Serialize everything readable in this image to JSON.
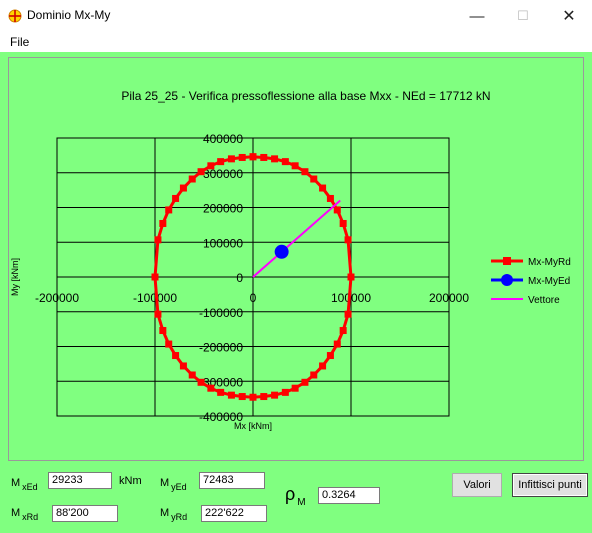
{
  "window": {
    "title": "Dominio Mx-My"
  },
  "menu": {
    "file": "File"
  },
  "chart_data": {
    "type": "line",
    "title": "Pila 25_25 - Verifica pressoflessione alla base Mxx - NEd = 17712 kN",
    "xlabel": "Mx [kNm]",
    "ylabel": "My [kNm]",
    "xlim": [
      -200000,
      200000
    ],
    "ylim": [
      -400000,
      400000
    ],
    "x_ticks": [
      -200000,
      -100000,
      0,
      100000,
      200000
    ],
    "x_tick_labels": [
      "-200000",
      "-100000",
      "0",
      "100000",
      "200000"
    ],
    "y_ticks": [
      400000,
      300000,
      200000,
      100000,
      0,
      -100000,
      -200000,
      -300000,
      -400000
    ],
    "y_tick_labels": [
      "400000",
      "300000",
      "200000",
      "100000",
      "0",
      "-100000",
      "-200000",
      "-300000",
      "-400000"
    ],
    "grid": true,
    "legend_position": "right",
    "series": [
      {
        "name": "Mx-MyRd",
        "color": "#ff0000",
        "marker": "square",
        "x": [
          0,
          11000,
          22000,
          33000,
          43000,
          53000,
          62000,
          71000,
          79000,
          86000,
          92000,
          97000,
          100000,
          97000,
          92000,
          86000,
          79000,
          71000,
          62000,
          53000,
          43000,
          33000,
          22000,
          11000,
          0,
          -11000,
          -22000,
          -33000,
          -43000,
          -53000,
          -62000,
          -71000,
          -79000,
          -86000,
          -92000,
          -97000,
          -100000,
          -97000,
          -92000,
          -86000,
          -79000,
          -71000,
          -62000,
          -53000,
          -43000,
          -33000,
          -22000,
          -11000,
          0
        ],
        "y": [
          346000,
          344000,
          340000,
          332000,
          320000,
          303000,
          282000,
          256000,
          226000,
          193000,
          154000,
          107000,
          0,
          -107000,
          -154000,
          -193000,
          -226000,
          -256000,
          -282000,
          -303000,
          -320000,
          -332000,
          -340000,
          -344000,
          -346000,
          -344000,
          -340000,
          -332000,
          -320000,
          -303000,
          -282000,
          -256000,
          -226000,
          -193000,
          -154000,
          -107000,
          0,
          107000,
          154000,
          193000,
          226000,
          256000,
          282000,
          303000,
          320000,
          332000,
          340000,
          344000,
          346000
        ]
      },
      {
        "name": "Mx-MyEd",
        "color": "#0000ff",
        "marker": "circle",
        "x": [
          29233
        ],
        "y": [
          72483
        ]
      },
      {
        "name": "Vettore",
        "color": "#ff00ff",
        "marker": "none",
        "x": [
          0,
          89000
        ],
        "y": [
          0,
          220000
        ]
      }
    ]
  },
  "results": {
    "m_label": "M",
    "mxed_sub": "xEd",
    "mxed_value": "29233",
    "mxed_unit": "kNm",
    "myed_sub": "yEd",
    "myed_value": "72483",
    "mxrd_sub": "xRd",
    "mxrd_value": "88'200",
    "myrd_sub": "yRd",
    "myrd_value": "222'622",
    "rho_symbol": "ρ",
    "rho_sub": "M",
    "rho_value": "0.3264"
  },
  "buttons": {
    "valori": "Valori",
    "infittisci": "Infittisci punti"
  }
}
